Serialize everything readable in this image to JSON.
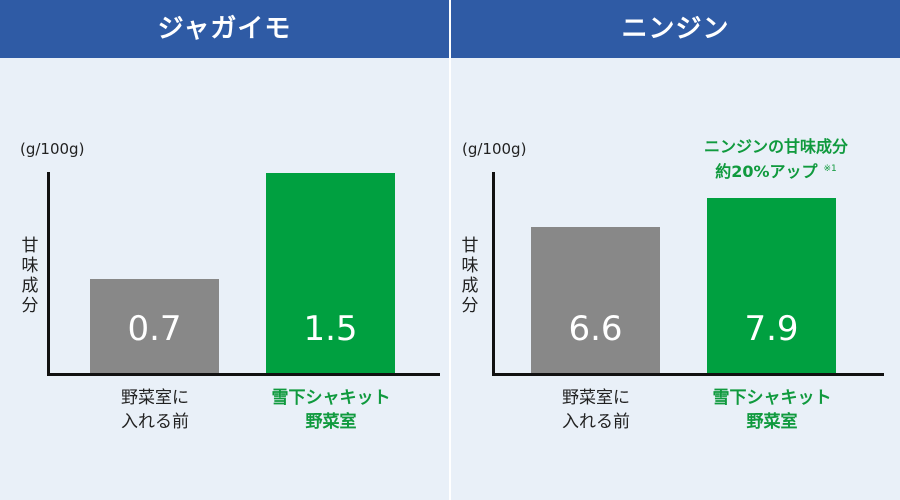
{
  "panels": [
    {
      "title": "ジャガイモ",
      "unit": "(g/100g)",
      "ylabel": "甘味成分",
      "bars": [
        {
          "label_line1": "野菜室に",
          "label_line2": "入れる前",
          "value": "0.7"
        },
        {
          "label_line1": "雪下シャキット",
          "label_line2": "野菜室",
          "value": "1.5"
        }
      ]
    },
    {
      "title": "ニンジン",
      "unit": "(g/100g)",
      "ylabel": "甘味成分",
      "annotation_line1": "ニンジンの甘味成分",
      "annotation_line2": "約20%アップ",
      "annotation_footnote": "※1",
      "bars": [
        {
          "label_line1": "野菜室に",
          "label_line2": "入れる前",
          "value": "6.6"
        },
        {
          "label_line1": "雪下シャキット",
          "label_line2": "野菜室",
          "value": "7.9"
        }
      ]
    }
  ],
  "colors": {
    "header": "#2f5ba5",
    "background": "#e9f0f8",
    "before_bar": "#888888",
    "after_bar": "#00a040",
    "after_text": "#109a3e"
  },
  "chart_data": [
    {
      "type": "bar",
      "title": "ジャガイモ",
      "ylabel": "甘味成分 (g/100g)",
      "xlabel": "",
      "categories": [
        "野菜室に入れる前",
        "雪下シャキット野菜室"
      ],
      "values": [
        0.7,
        1.5
      ],
      "grid": false,
      "legend": null
    },
    {
      "type": "bar",
      "title": "ニンジン",
      "ylabel": "甘味成分 (g/100g)",
      "xlabel": "",
      "categories": [
        "野菜室に入れる前",
        "雪下シャキット野菜室"
      ],
      "values": [
        6.6,
        7.9
      ],
      "annotations": [
        "ニンジンの甘味成分 約20%アップ ※1"
      ],
      "grid": false,
      "legend": null
    }
  ]
}
